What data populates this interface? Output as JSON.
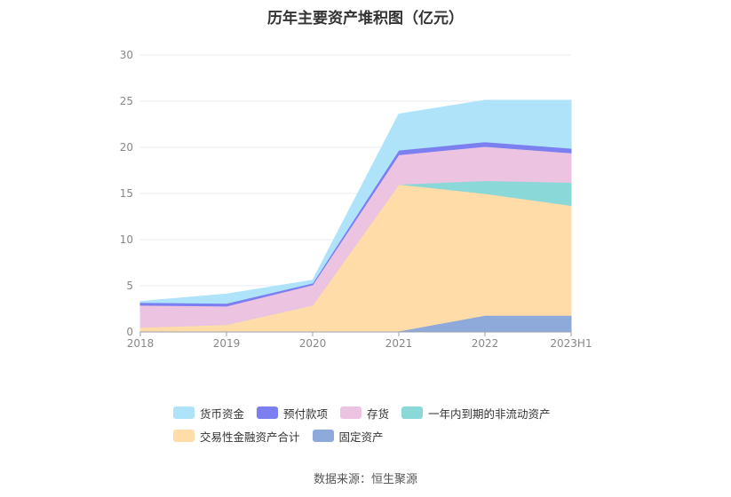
{
  "chart_data": {
    "type": "area",
    "stacked": true,
    "title": "历年主要资产堆积图（亿元）",
    "categories": [
      "2018",
      "2019",
      "2020",
      "2021",
      "2022",
      "2023H1"
    ],
    "ylim": [
      0,
      30
    ],
    "yticks": [
      0,
      5,
      10,
      15,
      20,
      25,
      30
    ],
    "grid": true,
    "legend_position": "bottom",
    "series": [
      {
        "name": "固定资产",
        "color": "#8eaadb",
        "values": [
          0.1,
          0.1,
          0.1,
          0.1,
          1.8,
          1.8
        ]
      },
      {
        "name": "交易性金融资产合计",
        "color": "#ffdca8",
        "values": [
          0.4,
          0.7,
          2.8,
          15.9,
          13.2,
          11.9
        ]
      },
      {
        "name": "一年内到期的非流动资产",
        "color": "#8ad8d8",
        "values": [
          0,
          0,
          0,
          0,
          1.4,
          2.5
        ]
      },
      {
        "name": "存货",
        "color": "#ecc4e1",
        "values": [
          2.4,
          2.0,
          2.2,
          3.2,
          3.7,
          3.2
        ]
      },
      {
        "name": "预付款项",
        "color": "#7b7ff0",
        "values": [
          0.3,
          0.3,
          0.2,
          0.5,
          0.5,
          0.5
        ]
      },
      {
        "name": "货币资金",
        "color": "#aee3fa",
        "values": [
          0.1,
          1.0,
          0.3,
          3.9,
          4.5,
          5.2
        ]
      }
    ]
  },
  "legend": [
    {
      "label": "货币资金",
      "color": "#aee3fa"
    },
    {
      "label": "预付款项",
      "color": "#7b7ff0"
    },
    {
      "label": "存货",
      "color": "#ecc4e1"
    },
    {
      "label": "一年内到期的非流动资产",
      "color": "#8ad8d8"
    },
    {
      "label": "交易性金融资产合计",
      "color": "#ffdca8"
    },
    {
      "label": "固定资产",
      "color": "#8eaadb"
    }
  ],
  "source": "数据来源：恒生聚源"
}
